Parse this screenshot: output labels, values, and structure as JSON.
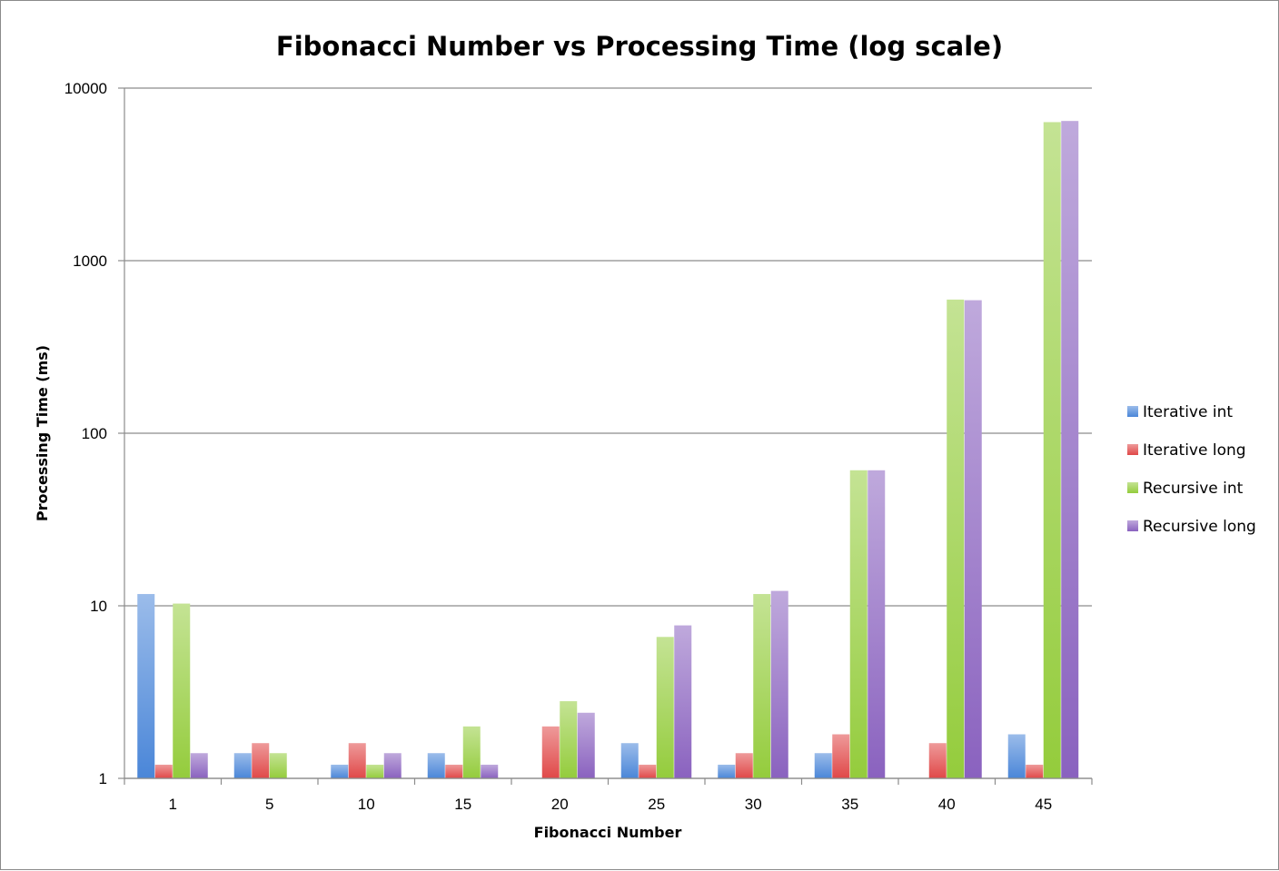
{
  "chart_data": {
    "type": "bar",
    "title": "Fibonacci Number vs Processing Time (log scale)",
    "xlabel": "Fibonacci Number",
    "ylabel": "Processing Time (ms)",
    "y_scale": "log",
    "ylim": [
      1,
      10000
    ],
    "yticks": [
      "1",
      "10",
      "100",
      "1000",
      "10000"
    ],
    "grid": true,
    "legend_position": "right",
    "categories": [
      "1",
      "5",
      "10",
      "15",
      "20",
      "25",
      "30",
      "35",
      "40",
      "45"
    ],
    "series": [
      {
        "name": "Iterative int",
        "color": "#4a86d8",
        "values": [
          11.7,
          1.4,
          1.2,
          1.4,
          null,
          1.6,
          1.2,
          1.4,
          null,
          1.8
        ]
      },
      {
        "name": "Iterative long",
        "color": "#e04848",
        "values": [
          1.2,
          1.6,
          1.6,
          1.2,
          2.0,
          1.2,
          1.4,
          1.8,
          1.6,
          1.2
        ]
      },
      {
        "name": "Recursive int",
        "color": "#94cc3c",
        "values": [
          10.3,
          1.4,
          1.2,
          2.0,
          2.8,
          6.6,
          11.7,
          61,
          595,
          6350
        ]
      },
      {
        "name": "Recursive long",
        "color": "#8a62bf",
        "values": [
          1.4,
          null,
          1.4,
          1.2,
          2.4,
          7.7,
          12.2,
          61,
          590,
          6450
        ]
      }
    ]
  }
}
